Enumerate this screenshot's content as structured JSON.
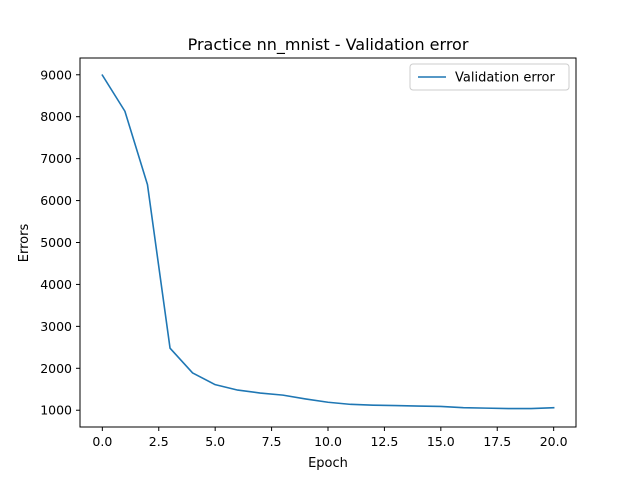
{
  "chart_data": {
    "type": "line",
    "title": "Practice nn_mnist - Validation error",
    "xlabel": "Epoch",
    "ylabel": "Errors",
    "xlim": [
      -0.99,
      20.99
    ],
    "ylim": [
      600,
      9400
    ],
    "xticks": [
      0.0,
      2.5,
      5.0,
      7.5,
      10.0,
      12.5,
      15.0,
      17.5,
      20.0
    ],
    "xtick_labels": [
      "0.0",
      "2.5",
      "5.0",
      "7.5",
      "10.0",
      "12.5",
      "15.0",
      "17.5",
      "20.0"
    ],
    "yticks": [
      1000,
      2000,
      3000,
      4000,
      5000,
      6000,
      7000,
      8000,
      9000
    ],
    "ytick_labels": [
      "1000",
      "2000",
      "3000",
      "4000",
      "5000",
      "6000",
      "7000",
      "8000",
      "9000"
    ],
    "grid": false,
    "legend_position": "top-right",
    "series": [
      {
        "name": "Validation error",
        "color": "#1f77b4",
        "x": [
          0,
          1,
          2,
          3,
          4,
          5,
          6,
          7,
          8,
          9,
          10,
          11,
          12,
          13,
          14,
          15,
          16,
          17,
          18,
          19,
          20
        ],
        "values": [
          8990,
          8130,
          6380,
          2480,
          1890,
          1610,
          1480,
          1410,
          1360,
          1270,
          1190,
          1140,
          1120,
          1110,
          1100,
          1090,
          1060,
          1050,
          1040,
          1040,
          1060
        ]
      }
    ]
  }
}
